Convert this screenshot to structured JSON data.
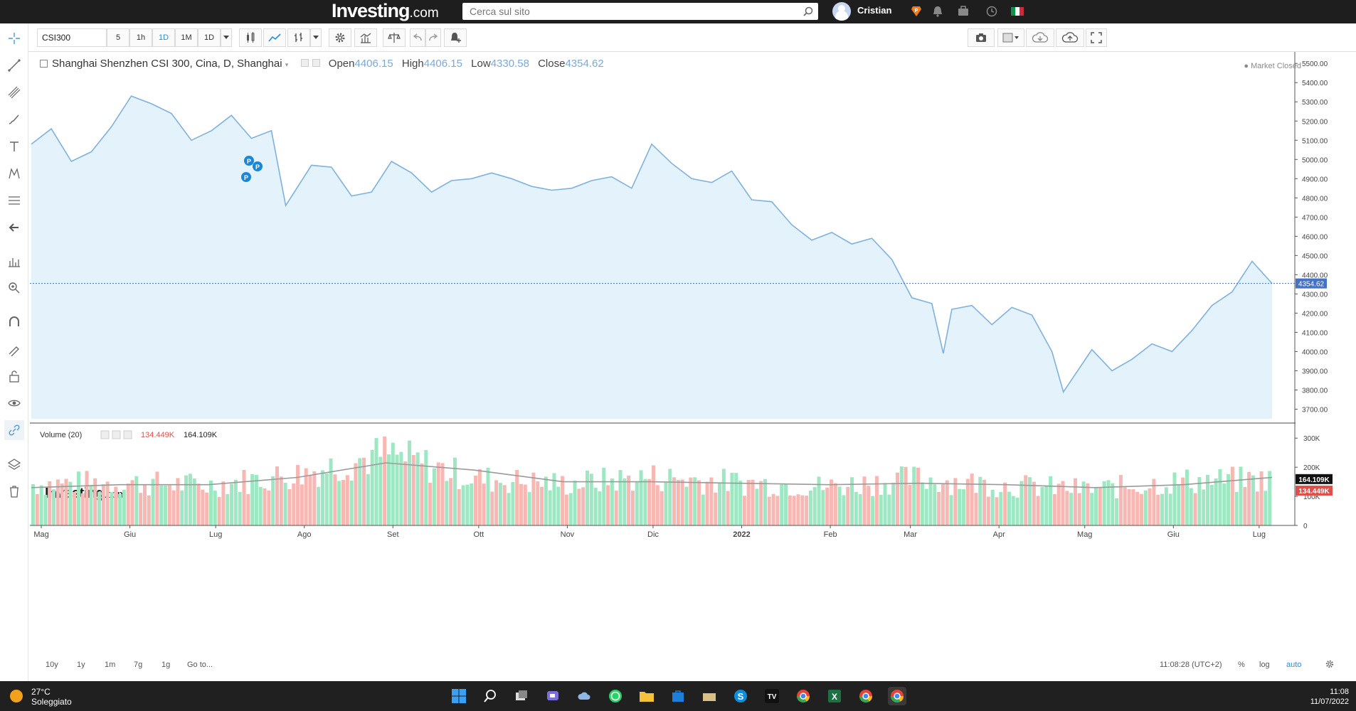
{
  "header": {
    "logo_main": "Investing",
    "logo_suffix": ".com",
    "search_placeholder": "Cerca sul sito",
    "user_name": "Cristian"
  },
  "toolbar": {
    "symbol": "CSI300",
    "intervals": [
      "5",
      "1h",
      "1D",
      "1M",
      "1D"
    ],
    "active_interval": "1D"
  },
  "instrument": {
    "title": "Shanghai Shenzhen CSI 300, Cina, D, Shanghai",
    "open_label": "Open",
    "open_value": "4406.15",
    "high_label": "High",
    "high_value": "4406.15",
    "low_label": "Low",
    "low_value": "4330.58",
    "close_label": "Close",
    "close_value": "4354.62",
    "market_status": "Market Closed",
    "last_price_label": "4354.62"
  },
  "watermark": {
    "main": "Investing",
    "suffix": ".com"
  },
  "volume_pane": {
    "title": "Volume (20)",
    "value_red": "134.449K",
    "value_black": "164.109K",
    "badge_black": "164.109K",
    "badge_red": "134.449K"
  },
  "bottom_bar": {
    "ranges": [
      "10y",
      "1y",
      "1m",
      "7g",
      "1g"
    ],
    "goto": "Go to...",
    "time": "11:08:28 (UTC+2)",
    "percent": "%",
    "log": "log",
    "auto": "auto"
  },
  "taskbar": {
    "temperature": "27°C",
    "weather": "Soleggiato",
    "time": "11:08",
    "date": "11/07/2022"
  },
  "colors": {
    "line": "#7fb1dd",
    "area_fill": "#e4f2fb",
    "vol_up": "#9de8c3",
    "vol_down": "#f7b8b4",
    "vol_ma": "#9a9a9a",
    "last_price_badge": "#4472c4",
    "accent": "#2a8dd4"
  },
  "chart_data": [
    {
      "type": "line",
      "title": "Shanghai Shenzhen CSI 300, Cina, D, Shanghai",
      "x_tick_labels": [
        "Mag",
        "Giu",
        "Lug",
        "Ago",
        "Set",
        "Ott",
        "Nov",
        "Dic",
        "2022",
        "Feb",
        "Mar",
        "Apr",
        "Mag",
        "Giu",
        "Lug"
      ],
      "y_tick_labels": [
        "5500.00",
        "5400.00",
        "5300.00",
        "5200.00",
        "5100.00",
        "5000.00",
        "4900.00",
        "4800.00",
        "4700.00",
        "4600.00",
        "4500.00",
        "4400.00",
        "4300.00",
        "4200.00",
        "4100.00",
        "4000.00",
        "3900.00",
        "3800.00",
        "3700.00"
      ],
      "ylim": [
        3650,
        5560
      ],
      "grid": false,
      "series": [
        {
          "x": [
            "2021-04-30",
            "2021-05-07",
            "2021-05-14",
            "2021-05-21",
            "2021-05-28",
            "2021-06-04",
            "2021-06-11",
            "2021-06-18",
            "2021-06-25",
            "2021-07-02",
            "2021-07-09",
            "2021-07-16",
            "2021-07-23",
            "2021-07-28",
            "2021-08-06",
            "2021-08-13",
            "2021-08-20",
            "2021-08-27",
            "2021-09-03",
            "2021-09-10",
            "2021-09-17",
            "2021-09-24",
            "2021-10-01",
            "2021-10-08",
            "2021-10-15",
            "2021-10-22",
            "2021-10-29",
            "2021-11-05",
            "2021-11-12",
            "2021-11-19",
            "2021-11-26",
            "2021-12-03",
            "2021-12-10",
            "2021-12-17",
            "2021-12-24",
            "2021-12-31",
            "2022-01-07",
            "2022-01-14",
            "2022-01-21",
            "2022-01-28",
            "2022-02-04",
            "2022-02-11",
            "2022-02-18",
            "2022-02-25",
            "2022-03-04",
            "2022-03-11",
            "2022-03-15",
            "2022-03-18",
            "2022-03-25",
            "2022-04-01",
            "2022-04-08",
            "2022-04-15",
            "2022-04-22",
            "2022-04-26",
            "2022-05-06",
            "2022-05-13",
            "2022-05-20",
            "2022-05-27",
            "2022-06-03",
            "2022-06-10",
            "2022-06-17",
            "2022-06-24",
            "2022-07-01",
            "2022-07-08"
          ],
          "values": [
            5080,
            5160,
            4990,
            5040,
            5170,
            5330,
            5290,
            5240,
            5100,
            5150,
            5230,
            5110,
            5150,
            4760,
            4970,
            4960,
            4810,
            4830,
            4990,
            4930,
            4830,
            4890,
            4900,
            4930,
            4900,
            4860,
            4840,
            4850,
            4890,
            4910,
            4850,
            5080,
            4980,
            4900,
            4880,
            4940,
            4790,
            4780,
            4660,
            4580,
            4620,
            4560,
            4590,
            4480,
            4280,
            4250,
            3990,
            4220,
            4240,
            4140,
            4230,
            4190,
            4000,
            3790,
            4010,
            3900,
            3960,
            4040,
            4000,
            4110,
            4240,
            4310,
            4470,
            4354.62
          ]
        }
      ]
    },
    {
      "type": "bar",
      "title": "Volume (20)",
      "y_tick_labels": [
        "300K",
        "200K",
        "100K",
        "0"
      ],
      "ylim": [
        0,
        325
      ],
      "y_unit": "K",
      "x": [
        "2021-05",
        "2021-06",
        "2021-07",
        "2021-08",
        "2021-09",
        "2021-10",
        "2021-11",
        "2021-12",
        "2022-01",
        "2022-02",
        "2022-03",
        "2022-04",
        "2022-05",
        "2022-06",
        "2022-07"
      ],
      "series": [
        {
          "name": "Volume",
          "values": [
            150,
            155,
            145,
            185,
            260,
            170,
            150,
            175,
            155,
            140,
            170,
            145,
            130,
            160,
            165
          ]
        },
        {
          "name": "MA20",
          "values": [
            130,
            140,
            140,
            165,
            215,
            190,
            150,
            150,
            145,
            140,
            145,
            140,
            130,
            140,
            165
          ]
        }
      ]
    }
  ]
}
